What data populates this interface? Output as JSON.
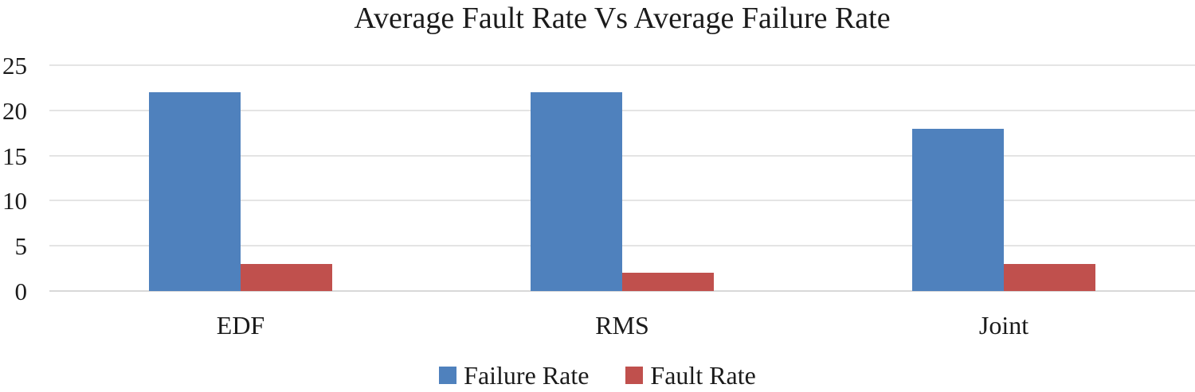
{
  "chart_data": {
    "type": "bar",
    "title": "Average Fault Rate Vs Average Failure Rate",
    "categories": [
      "EDF",
      "RMS",
      "Joint"
    ],
    "series": [
      {
        "name": "Failure Rate",
        "color": "#4F81BD",
        "values": [
          22,
          22,
          18
        ]
      },
      {
        "name": "Fault Rate",
        "color": "#C0504D",
        "values": [
          3,
          2,
          3
        ]
      }
    ],
    "xlabel": "",
    "ylabel": "",
    "ylim": [
      0,
      25
    ],
    "yticks": [
      0,
      5,
      10,
      15,
      20,
      25
    ],
    "grid": true,
    "gridline_color": "#e4e4e4",
    "zero_line_color": "#d8d8d8",
    "legend_position": "bottom"
  }
}
